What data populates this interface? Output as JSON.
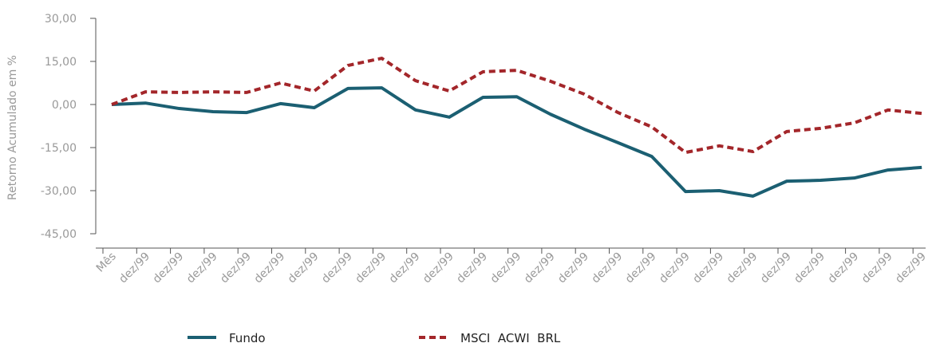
{
  "chart_data": {
    "type": "line",
    "y_label": "Retorno Acumulado em %",
    "categories": [
      "Mês",
      "dez/99",
      "dez/99",
      "dez/99",
      "dez/99",
      "dez/99",
      "dez/99",
      "dez/99",
      "dez/99",
      "dez/99",
      "dez/99",
      "dez/99",
      "dez/99",
      "dez/99",
      "dez/99",
      "dez/99",
      "dez/99",
      "dez/99",
      "dez/99",
      "dez/99",
      "dez/99",
      "dez/99",
      "dez/99",
      "dez/99",
      "dez/99"
    ],
    "series": [
      {
        "name": "Fundo",
        "color": "#1b5f72",
        "dashed": false,
        "values": [
          0,
          0.5,
          -1.4,
          -2.5,
          -2.8,
          0.3,
          -1.1,
          5.6,
          5.8,
          -1.9,
          -4.4,
          2.5,
          2.7,
          -3.4,
          -8.6,
          -13.3,
          -18.1,
          -30.3,
          -30.0,
          -31.9,
          -26.7,
          -26.4,
          -25.6,
          -22.8,
          -21.9
        ]
      },
      {
        "name": "MSCI  ACWI  BRL",
        "color": "#a3262a",
        "dashed": true,
        "values": [
          0,
          4.4,
          4.2,
          4.4,
          4.2,
          7.5,
          4.7,
          13.6,
          16.1,
          8.3,
          4.7,
          11.4,
          11.9,
          8.1,
          3.6,
          -2.8,
          -7.8,
          -16.7,
          -14.4,
          -16.4,
          -9.4,
          -8.3,
          -6.4,
          -1.9,
          -3.1
        ]
      }
    ],
    "ylim": [
      -45,
      30
    ],
    "yticks": [
      {
        "value": 30,
        "label": "30,00"
      },
      {
        "value": 15,
        "label": "15,00"
      },
      {
        "value": 0,
        "label": "0,00"
      },
      {
        "value": -15,
        "label": "-15,00"
      },
      {
        "value": -30,
        "label": "-30,00"
      },
      {
        "value": -45,
        "label": "-45,00"
      }
    ]
  }
}
